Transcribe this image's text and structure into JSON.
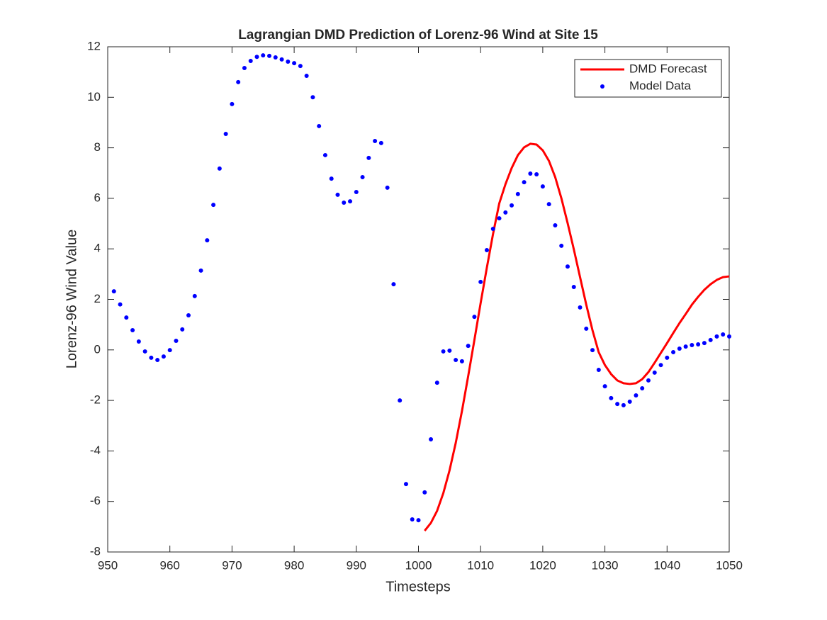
{
  "chart_data": {
    "type": "line",
    "title": "Lagrangian DMD Prediction of Lorenz-96 Wind at Site 15",
    "x_label": "Timesteps",
    "y_label": "Lorenz-96 Wind Value",
    "xlim": [
      950,
      1050
    ],
    "ylim": [
      -8,
      12
    ],
    "xticks": [
      950,
      960,
      970,
      980,
      990,
      1000,
      1010,
      1020,
      1030,
      1040,
      1050
    ],
    "yticks": [
      -8,
      -6,
      -4,
      -2,
      0,
      2,
      4,
      6,
      8,
      10,
      12
    ],
    "legend": "top-right",
    "series": [
      {
        "name": "DMD Forecast",
        "color": "#ff0000",
        "style": "line",
        "x": [
          1001,
          1002,
          1003,
          1004,
          1005,
          1006,
          1007,
          1008,
          1009,
          1010,
          1011,
          1012,
          1013,
          1014,
          1015,
          1016,
          1017,
          1018,
          1019,
          1020,
          1021,
          1022,
          1023,
          1024,
          1025,
          1026,
          1027,
          1028,
          1029,
          1030,
          1031,
          1032,
          1033,
          1034,
          1035,
          1036,
          1037,
          1038,
          1039,
          1040,
          1041,
          1042,
          1043,
          1044,
          1045,
          1046,
          1047,
          1048,
          1049,
          1050
        ],
        "values": [
          -7.16,
          -6.85,
          -6.37,
          -5.67,
          -4.77,
          -3.68,
          -2.42,
          -1.04,
          0.39,
          1.85,
          3.25,
          4.59,
          5.8,
          6.56,
          7.2,
          7.71,
          8.02,
          8.16,
          8.13,
          7.9,
          7.48,
          6.84,
          6.0,
          5.02,
          3.98,
          2.88,
          1.79,
          0.78,
          -0.09,
          -0.6,
          -0.96,
          -1.21,
          -1.32,
          -1.35,
          -1.32,
          -1.16,
          -0.88,
          -0.51,
          -0.12,
          0.27,
          0.67,
          1.06,
          1.42,
          1.79,
          2.1,
          2.38,
          2.6,
          2.77,
          2.88,
          2.91
        ]
      },
      {
        "name": "Model Data",
        "color": "#0000ff",
        "style": "dots",
        "x": [
          951,
          952,
          953,
          954,
          955,
          956,
          957,
          958,
          959,
          960,
          961,
          962,
          963,
          964,
          965,
          966,
          967,
          968,
          969,
          970,
          971,
          972,
          973,
          974,
          975,
          976,
          977,
          978,
          979,
          980,
          981,
          982,
          983,
          984,
          985,
          986,
          987,
          988,
          989,
          990,
          991,
          992,
          993,
          994,
          995,
          996,
          997,
          998,
          999,
          1000,
          1001,
          1002,
          1003,
          1004,
          1005,
          1006,
          1007,
          1008,
          1009,
          1010,
          1011,
          1012,
          1013,
          1014,
          1015,
          1016,
          1017,
          1018,
          1019,
          1020,
          1021,
          1022,
          1023,
          1024,
          1025,
          1026,
          1027,
          1028,
          1029,
          1030,
          1031,
          1032,
          1033,
          1034,
          1035,
          1036,
          1037,
          1038,
          1039,
          1040,
          1041,
          1042,
          1043,
          1044,
          1045,
          1046,
          1047,
          1048,
          1049,
          1050
        ],
        "values": [
          2.32,
          1.8,
          1.28,
          0.78,
          0.33,
          -0.06,
          -0.31,
          -0.4,
          -0.26,
          -0.01,
          0.36,
          0.81,
          1.37,
          2.13,
          3.14,
          4.34,
          5.74,
          7.18,
          8.55,
          9.73,
          10.6,
          11.16,
          11.44,
          11.6,
          11.66,
          11.64,
          11.58,
          11.5,
          11.41,
          11.35,
          11.24,
          10.85,
          10.0,
          8.86,
          7.71,
          6.78,
          6.14,
          5.83,
          5.88,
          6.25,
          6.84,
          7.6,
          8.27,
          8.19,
          6.42,
          2.6,
          -2.0,
          -5.31,
          -6.71,
          -6.74,
          -5.64,
          -3.54,
          -1.3,
          -0.06,
          -0.03,
          -0.4,
          -0.45,
          0.16,
          1.31,
          2.69,
          3.95,
          4.79,
          5.21,
          5.44,
          5.72,
          6.17,
          6.64,
          6.98,
          6.95,
          6.47,
          5.77,
          4.93,
          4.12,
          3.3,
          2.49,
          1.68,
          0.84,
          -0.01,
          -0.79,
          -1.44,
          -1.91,
          -2.14,
          -2.19,
          -2.05,
          -1.8,
          -1.52,
          -1.21,
          -0.9,
          -0.6,
          -0.31,
          -0.09,
          0.05,
          0.13,
          0.19,
          0.22,
          0.27,
          0.39,
          0.53,
          0.61,
          0.53
        ]
      }
    ]
  }
}
